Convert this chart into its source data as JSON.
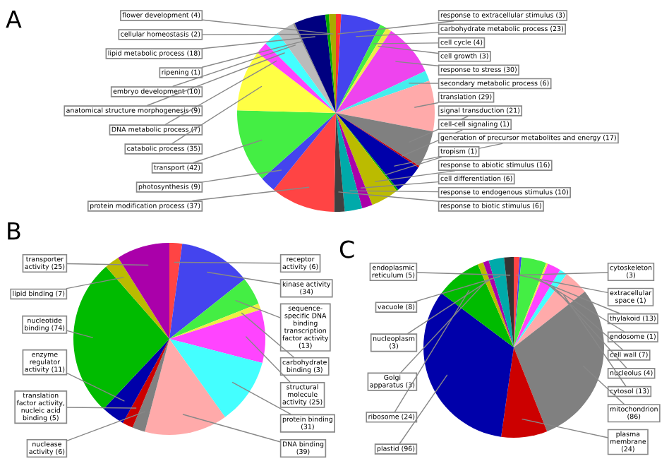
{
  "chart_data": [
    {
      "type": "pie",
      "title": "A",
      "categories": [
        "response to extracellular stimulus (3)",
        "carbohydrate metabolic process (23)",
        "cell cycle (4)",
        "cell growth (3)",
        "response to stress (30)",
        "secondary metabolic process (6)",
        "translation (29)",
        "signal transduction (21)",
        "cell-cell signaling (1)",
        "generation of precursor metabolites and energy (17)",
        "tropism (1)",
        "response to abiotic stimulus (16)",
        "cell differentiation (6)",
        "response to endogenous stimulus (10)",
        "response to biotic stimulus (6)",
        "protein modification process (37)",
        "photosynthesis (9)",
        "transport (42)",
        "catabolic process (35)",
        "DNA metabolic process (7)",
        "anatomical structure morphogenesis (9)",
        "embryo development (10)",
        "ripening (1)",
        "lipid metabolic process (18)",
        "cellular homeostasis (2)",
        "flower development (4)"
      ],
      "values": [
        3,
        23,
        4,
        3,
        30,
        6,
        29,
        21,
        1,
        17,
        1,
        16,
        6,
        10,
        6,
        37,
        9,
        42,
        35,
        7,
        9,
        10,
        1,
        18,
        2,
        4
      ],
      "colors": [
        "#ff3333",
        "#4444ee",
        "#44ee44",
        "#eeee44",
        "#ee44ee",
        "#44eeee",
        "#ffaaaa",
        "#808080",
        "#cc0000",
        "#0000aa",
        "#00aa00",
        "#bbbb00",
        "#aa00aa",
        "#00aaaa",
        "#404040",
        "#ff4444",
        "#4444ee",
        "#44ee44",
        "#ffff44",
        "#ff44ff",
        "#44ffff",
        "#bbbbbb",
        "#888888",
        "#000080",
        "#00aa00",
        "#aaaa00"
      ]
    },
    {
      "type": "pie",
      "title": "B",
      "categories": [
        "receptor\nactivity (6)",
        "kinase activity\n(34)",
        "sequence-\nspecific DNA\nbinding\ntranscription\nfactor activity\n(13)",
        "carbohydrate\nbinding (3)",
        "structural\nmolecule\nactivity (25)",
        "protein binding\n(31)",
        "DNA binding\n(39)",
        "nuclease\nactivity (6)",
        "translation\nfactor activity,\nnucleic acid\nbinding (5)",
        "enzyme\nregulator\nactivity (11)",
        "nucleotide\nbinding (74)",
        "lipid binding (7)",
        "transporter\nactivity (25)"
      ],
      "values": [
        6,
        34,
        13,
        3,
        25,
        31,
        39,
        6,
        5,
        11,
        74,
        7,
        25
      ],
      "colors": [
        "#ff4444",
        "#4444ee",
        "#44ee44",
        "#eeee44",
        "#ff44ff",
        "#44ffff",
        "#ffaaaa",
        "#808080",
        "#cc0000",
        "#0000aa",
        "#00bb00",
        "#bbbb00",
        "#aa00aa"
      ]
    },
    {
      "type": "pie",
      "title": "C",
      "categories": [
        "cytoskeleton\n(3)",
        "extracellular\nspace (1)",
        "thylakoid (13)",
        "endosome (1)",
        "cell wall (7)",
        "nucleolus (4)",
        "cytosol (13)",
        "mitochondrion\n(86)",
        "plasma\nmembrane\n(24)",
        "plastid (96)",
        "ribosome (24)",
        "Golgi\napparatus (3)",
        "nucleoplasm\n(3)",
        "vacuole (8)",
        "endoplasmic\nreticulum (5)"
      ],
      "values": [
        3,
        1,
        13,
        1,
        7,
        4,
        13,
        86,
        24,
        96,
        24,
        3,
        3,
        8,
        5
      ],
      "colors": [
        "#ff4444",
        "#4444ee",
        "#44ee44",
        "#eeee44",
        "#ff44ff",
        "#44ffff",
        "#ffaaaa",
        "#808080",
        "#cc0000",
        "#0000aa",
        "#00bb00",
        "#bbbb00",
        "#aa00aa",
        "#00aaaa",
        "#333333"
      ]
    }
  ]
}
